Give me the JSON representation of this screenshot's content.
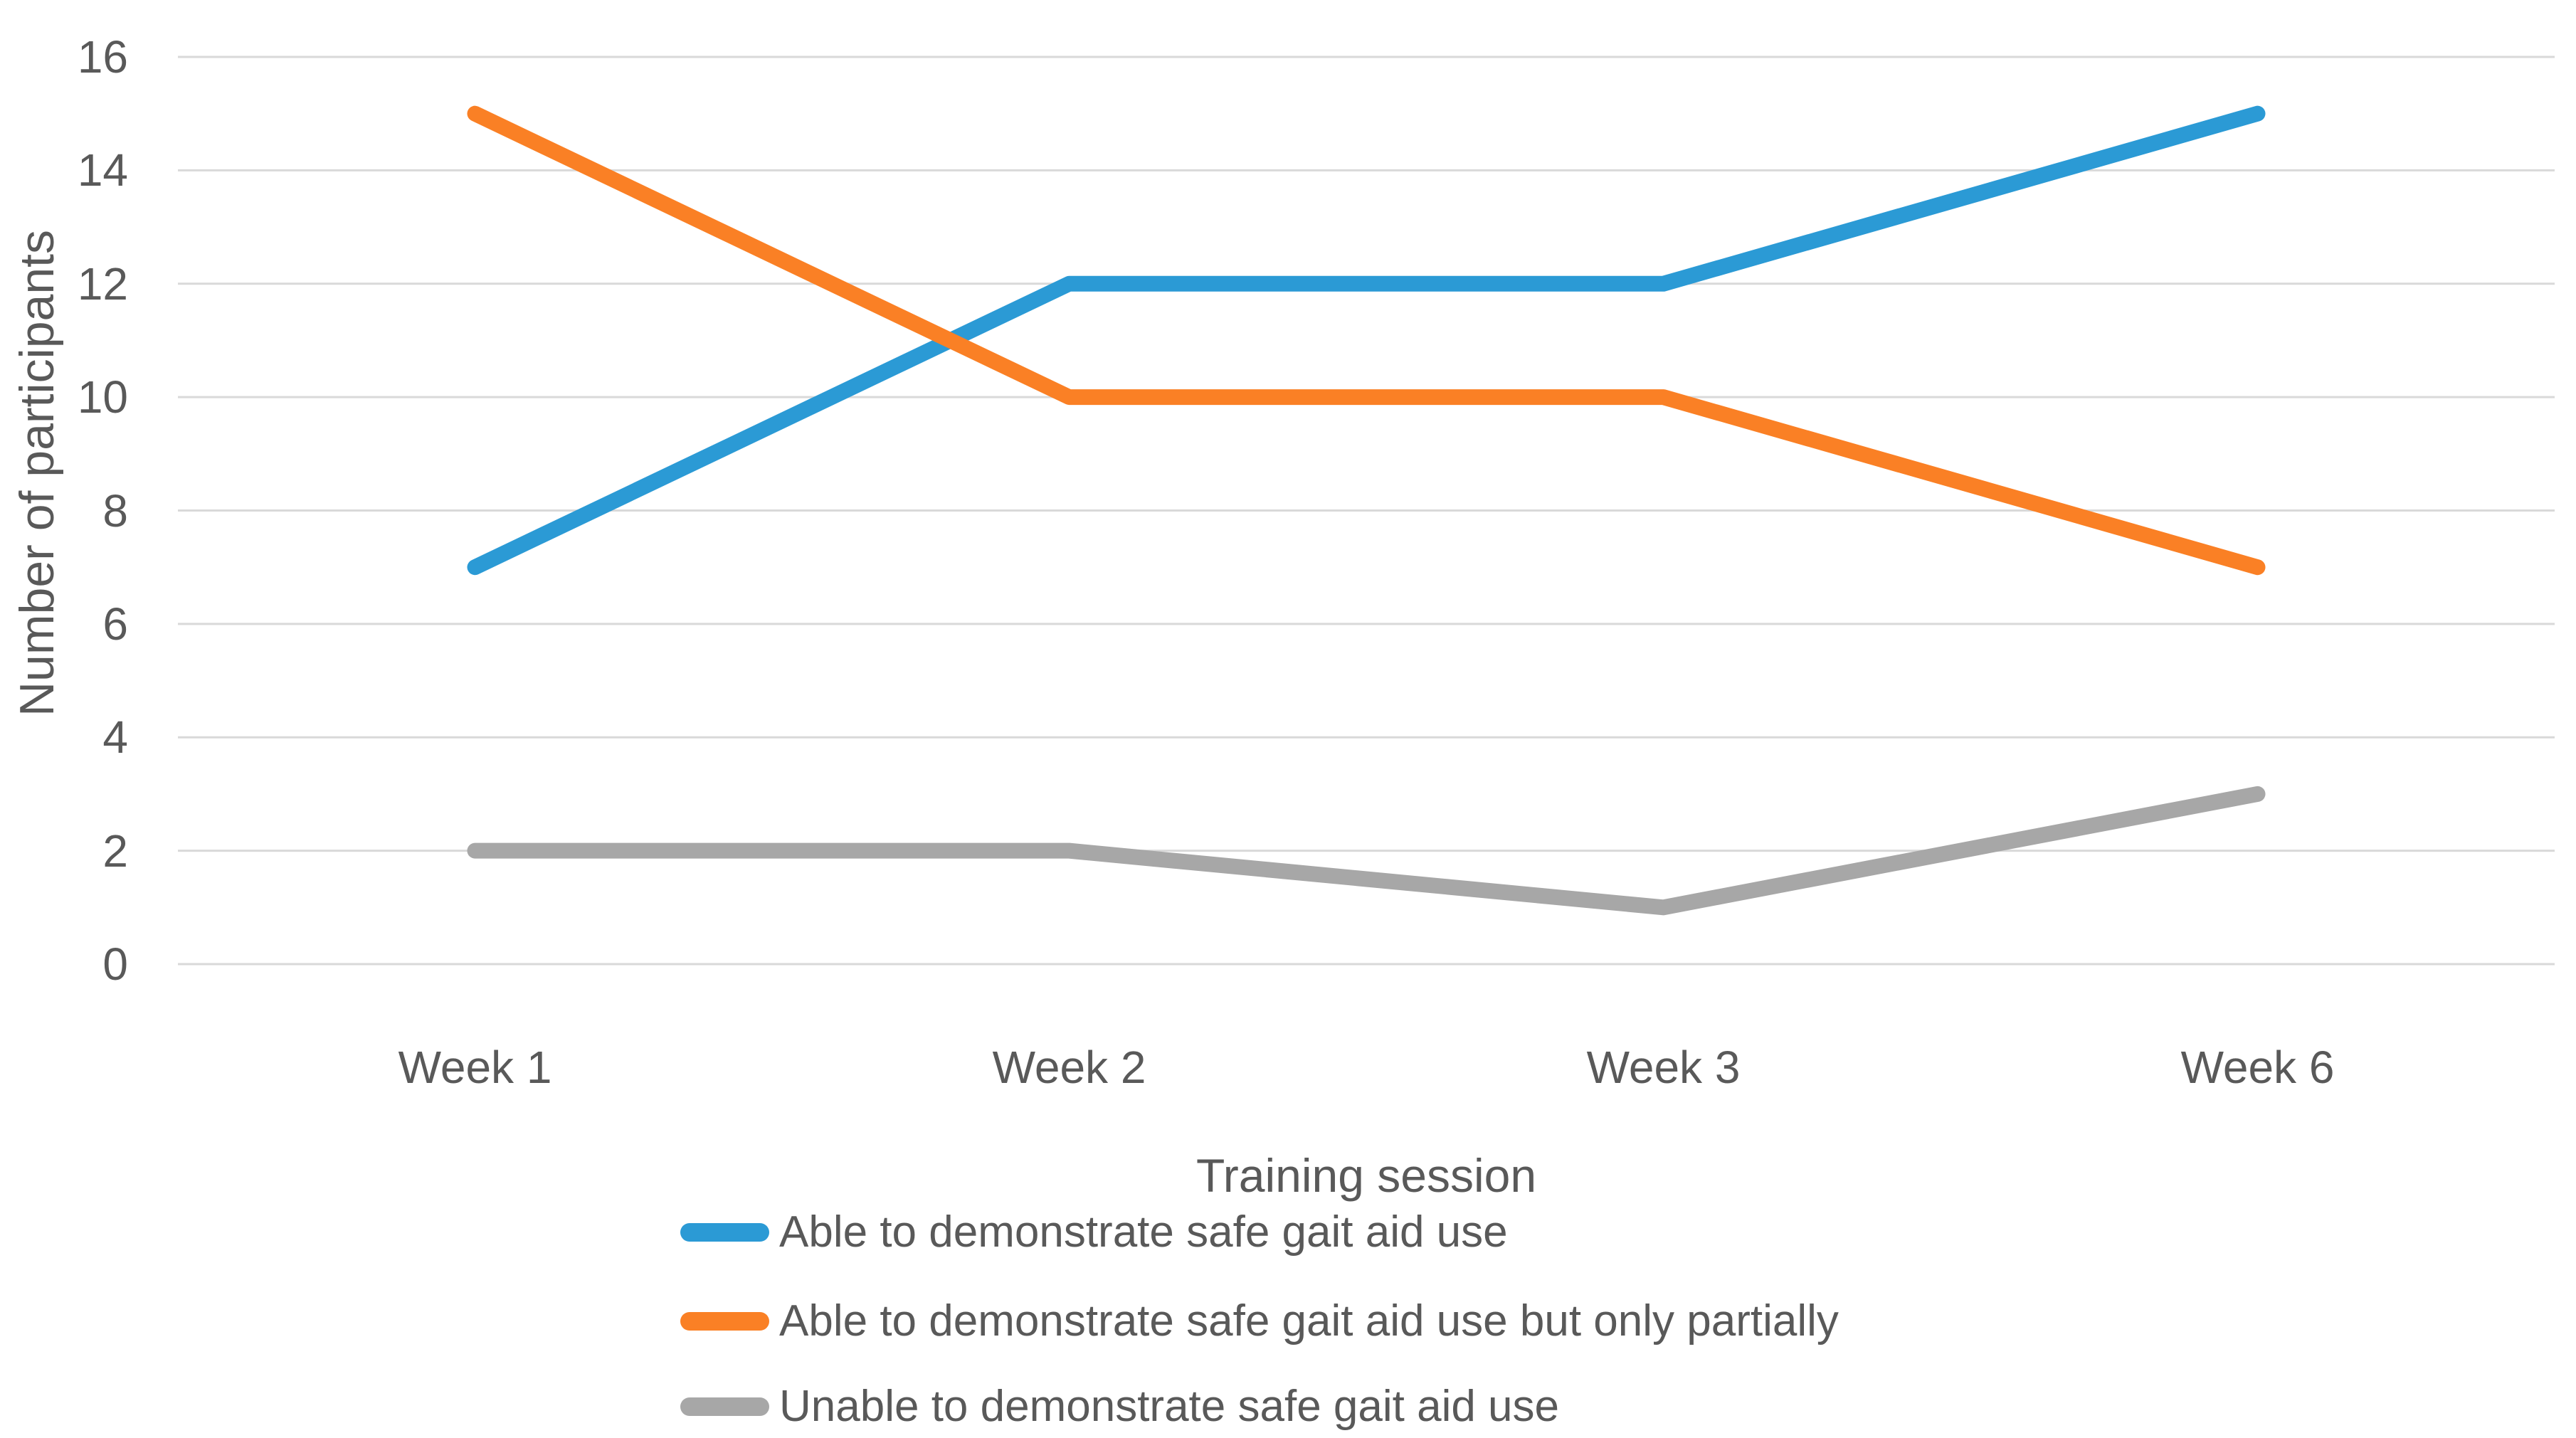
{
  "chart_data": {
    "type": "line",
    "title": "",
    "xlabel": "Training session",
    "ylabel": "Number of participants",
    "categories": [
      "Week 1",
      "Week 2",
      "Week 3",
      "Week 6"
    ],
    "series": [
      {
        "name": "Able to demonstrate safe gait aid use",
        "color": "#2B9AD5",
        "values": [
          7,
          12,
          12,
          15
        ]
      },
      {
        "name": "Able to demonstrate safe gait aid use but only partially",
        "color": "#FA8025",
        "values": [
          15,
          10,
          10,
          7
        ]
      },
      {
        "name": "Unable to demonstrate safe gait aid use",
        "color": "#A7A7A7",
        "values": [
          2,
          2,
          1,
          3
        ]
      }
    ],
    "ylim": [
      0,
      16
    ],
    "ytick_step": 2,
    "ytick_labels": [
      "16",
      "14",
      "12",
      "10",
      "8",
      "6",
      "4",
      "2",
      "0"
    ],
    "grid": true,
    "legend_position": "bottom-left"
  },
  "colors": {
    "grid": "#D9D9D9",
    "text": "#595959",
    "background": "#FFFFFF"
  }
}
